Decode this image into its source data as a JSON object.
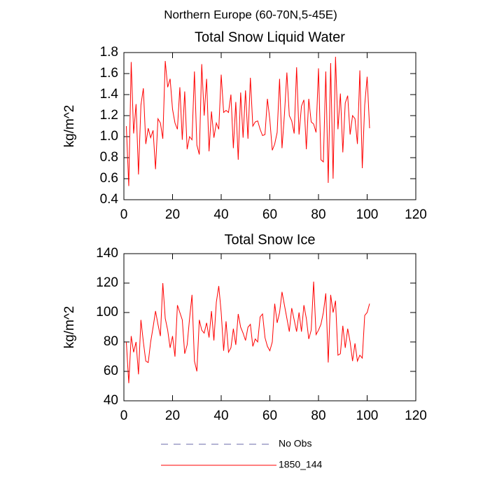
{
  "suptitle": "Northern Europe (60-70N,5-45E)",
  "legend": [
    {
      "label": "No Obs",
      "color": "#6a6aa8",
      "dashed": true
    }
  ],
  "chart_data": [
    {
      "type": "line",
      "title": "Total Snow Liquid Water",
      "ylabel": "kg/m^2",
      "xlim": [
        0,
        120
      ],
      "xticks": [
        0,
        20,
        40,
        60,
        80,
        100,
        120
      ],
      "ylim": [
        0.4,
        1.8
      ],
      "yticks": [
        0.4,
        0.6,
        0.8,
        {
          "value": 1,
          "label": "1.0"
        },
        1.2,
        1.4,
        1.6,
        1.8
      ],
      "x": [
        1,
        2,
        3,
        4,
        5,
        6,
        7,
        8,
        9,
        10,
        11,
        12,
        13,
        14,
        15,
        16,
        17,
        18,
        19,
        20,
        21,
        22,
        23,
        24,
        25,
        26,
        27,
        28,
        29,
        30,
        31,
        32,
        33,
        34,
        35,
        36,
        37,
        38,
        39,
        40,
        41,
        42,
        43,
        44,
        45,
        46,
        47,
        48,
        49,
        50,
        51,
        52,
        53,
        54,
        55,
        56,
        57,
        58,
        59,
        60,
        61,
        62,
        63,
        64,
        65,
        66,
        67,
        68,
        69,
        70,
        71,
        72,
        73,
        74,
        75,
        76,
        77,
        78,
        79,
        80,
        81,
        82,
        83,
        84,
        85,
        86,
        87,
        88,
        89,
        90,
        91,
        92,
        93,
        94,
        95,
        96,
        97,
        98,
        99,
        100,
        101
      ],
      "series": [
        {
          "name": "1850_144",
          "color": "#ff0000",
          "values": [
            1.1,
            0.53,
            1.71,
            1.03,
            1.31,
            0.64,
            1.3,
            1.46,
            0.93,
            1.08,
            0.99,
            1.06,
            0.69,
            1.17,
            1.13,
            0.98,
            1.72,
            1.47,
            1.55,
            1.26,
            1.13,
            1.07,
            1.47,
            0.97,
            1.43,
            0.88,
            1.0,
            0.97,
            1.62,
            0.92,
            0.83,
            1.69,
            1.2,
            1.55,
            0.86,
            1.24,
            0.99,
            1.13,
            1.07,
            1.59,
            1.23,
            1.25,
            1.23,
            1.4,
            0.89,
            1.33,
            0.78,
            1.42,
            0.99,
            1.44,
            0.98,
            1.56,
            1.1,
            1.14,
            1.15,
            1.07,
            1.01,
            1.02,
            1.36,
            1.16,
            0.87,
            0.93,
            1.04,
            1.55,
            0.89,
            1.21,
            1.61,
            1.2,
            1.15,
            1.03,
            1.66,
            1.02,
            1.29,
            1.35,
            0.88,
            1.36,
            1.14,
            1.12,
            1.04,
            1.65,
            0.78,
            0.76,
            1.62,
            0.56,
            1.7,
            0.6,
            1.76,
            1.07,
            1.41,
            0.85,
            1.32,
            1.39,
            1.02,
            1.2,
            1.17,
            0.93,
            1.63,
            0.7,
            1.3,
            1.57,
            1.08
          ]
        }
      ]
    },
    {
      "type": "line",
      "title": "Total Snow Ice",
      "ylabel": "kg/m^2",
      "xlim": [
        0,
        120
      ],
      "xticks": [
        0,
        20,
        40,
        60,
        80,
        100,
        120
      ],
      "ylim": [
        40,
        140
      ],
      "yticks": [
        40,
        60,
        80,
        100,
        120,
        140
      ],
      "x": [
        1,
        2,
        3,
        4,
        5,
        6,
        7,
        8,
        9,
        10,
        11,
        12,
        13,
        14,
        15,
        16,
        17,
        18,
        19,
        20,
        21,
        22,
        23,
        24,
        25,
        26,
        27,
        28,
        29,
        30,
        31,
        32,
        33,
        34,
        35,
        36,
        37,
        38,
        39,
        40,
        41,
        42,
        43,
        44,
        45,
        46,
        47,
        48,
        49,
        50,
        51,
        52,
        53,
        54,
        55,
        56,
        57,
        58,
        59,
        60,
        61,
        62,
        63,
        64,
        65,
        66,
        67,
        68,
        69,
        70,
        71,
        72,
        73,
        74,
        75,
        76,
        77,
        78,
        79,
        80,
        81,
        82,
        83,
        84,
        85,
        86,
        87,
        88,
        89,
        90,
        91,
        92,
        93,
        94,
        95,
        96,
        97,
        98,
        99,
        100,
        101
      ],
      "series": [
        {
          "name": "1850_144",
          "color": "#ff0000",
          "values": [
            80,
            52,
            84,
            73,
            80,
            58,
            95,
            80,
            67,
            66,
            80,
            90,
            101,
            92,
            84,
            120,
            96,
            88,
            76,
            84,
            70,
            105,
            100,
            95,
            72,
            78,
            96,
            112,
            67,
            60,
            95,
            88,
            86,
            93,
            83,
            101,
            81,
            107,
            118,
            100,
            74,
            94,
            73,
            76,
            89,
            78,
            99,
            90,
            86,
            81,
            90,
            92,
            77,
            82,
            80,
            97,
            99,
            83,
            77,
            74,
            80,
            106,
            93,
            100,
            114,
            105,
            96,
            87,
            103,
            95,
            87,
            100,
            87,
            105,
            96,
            82,
            88,
            121,
            85,
            88,
            92,
            100,
            113,
            66,
            112,
            100,
            108,
            71,
            72,
            91,
            76,
            89,
            80,
            67,
            79,
            67,
            71,
            69,
            98,
            100,
            106
          ]
        }
      ]
    }
  ]
}
